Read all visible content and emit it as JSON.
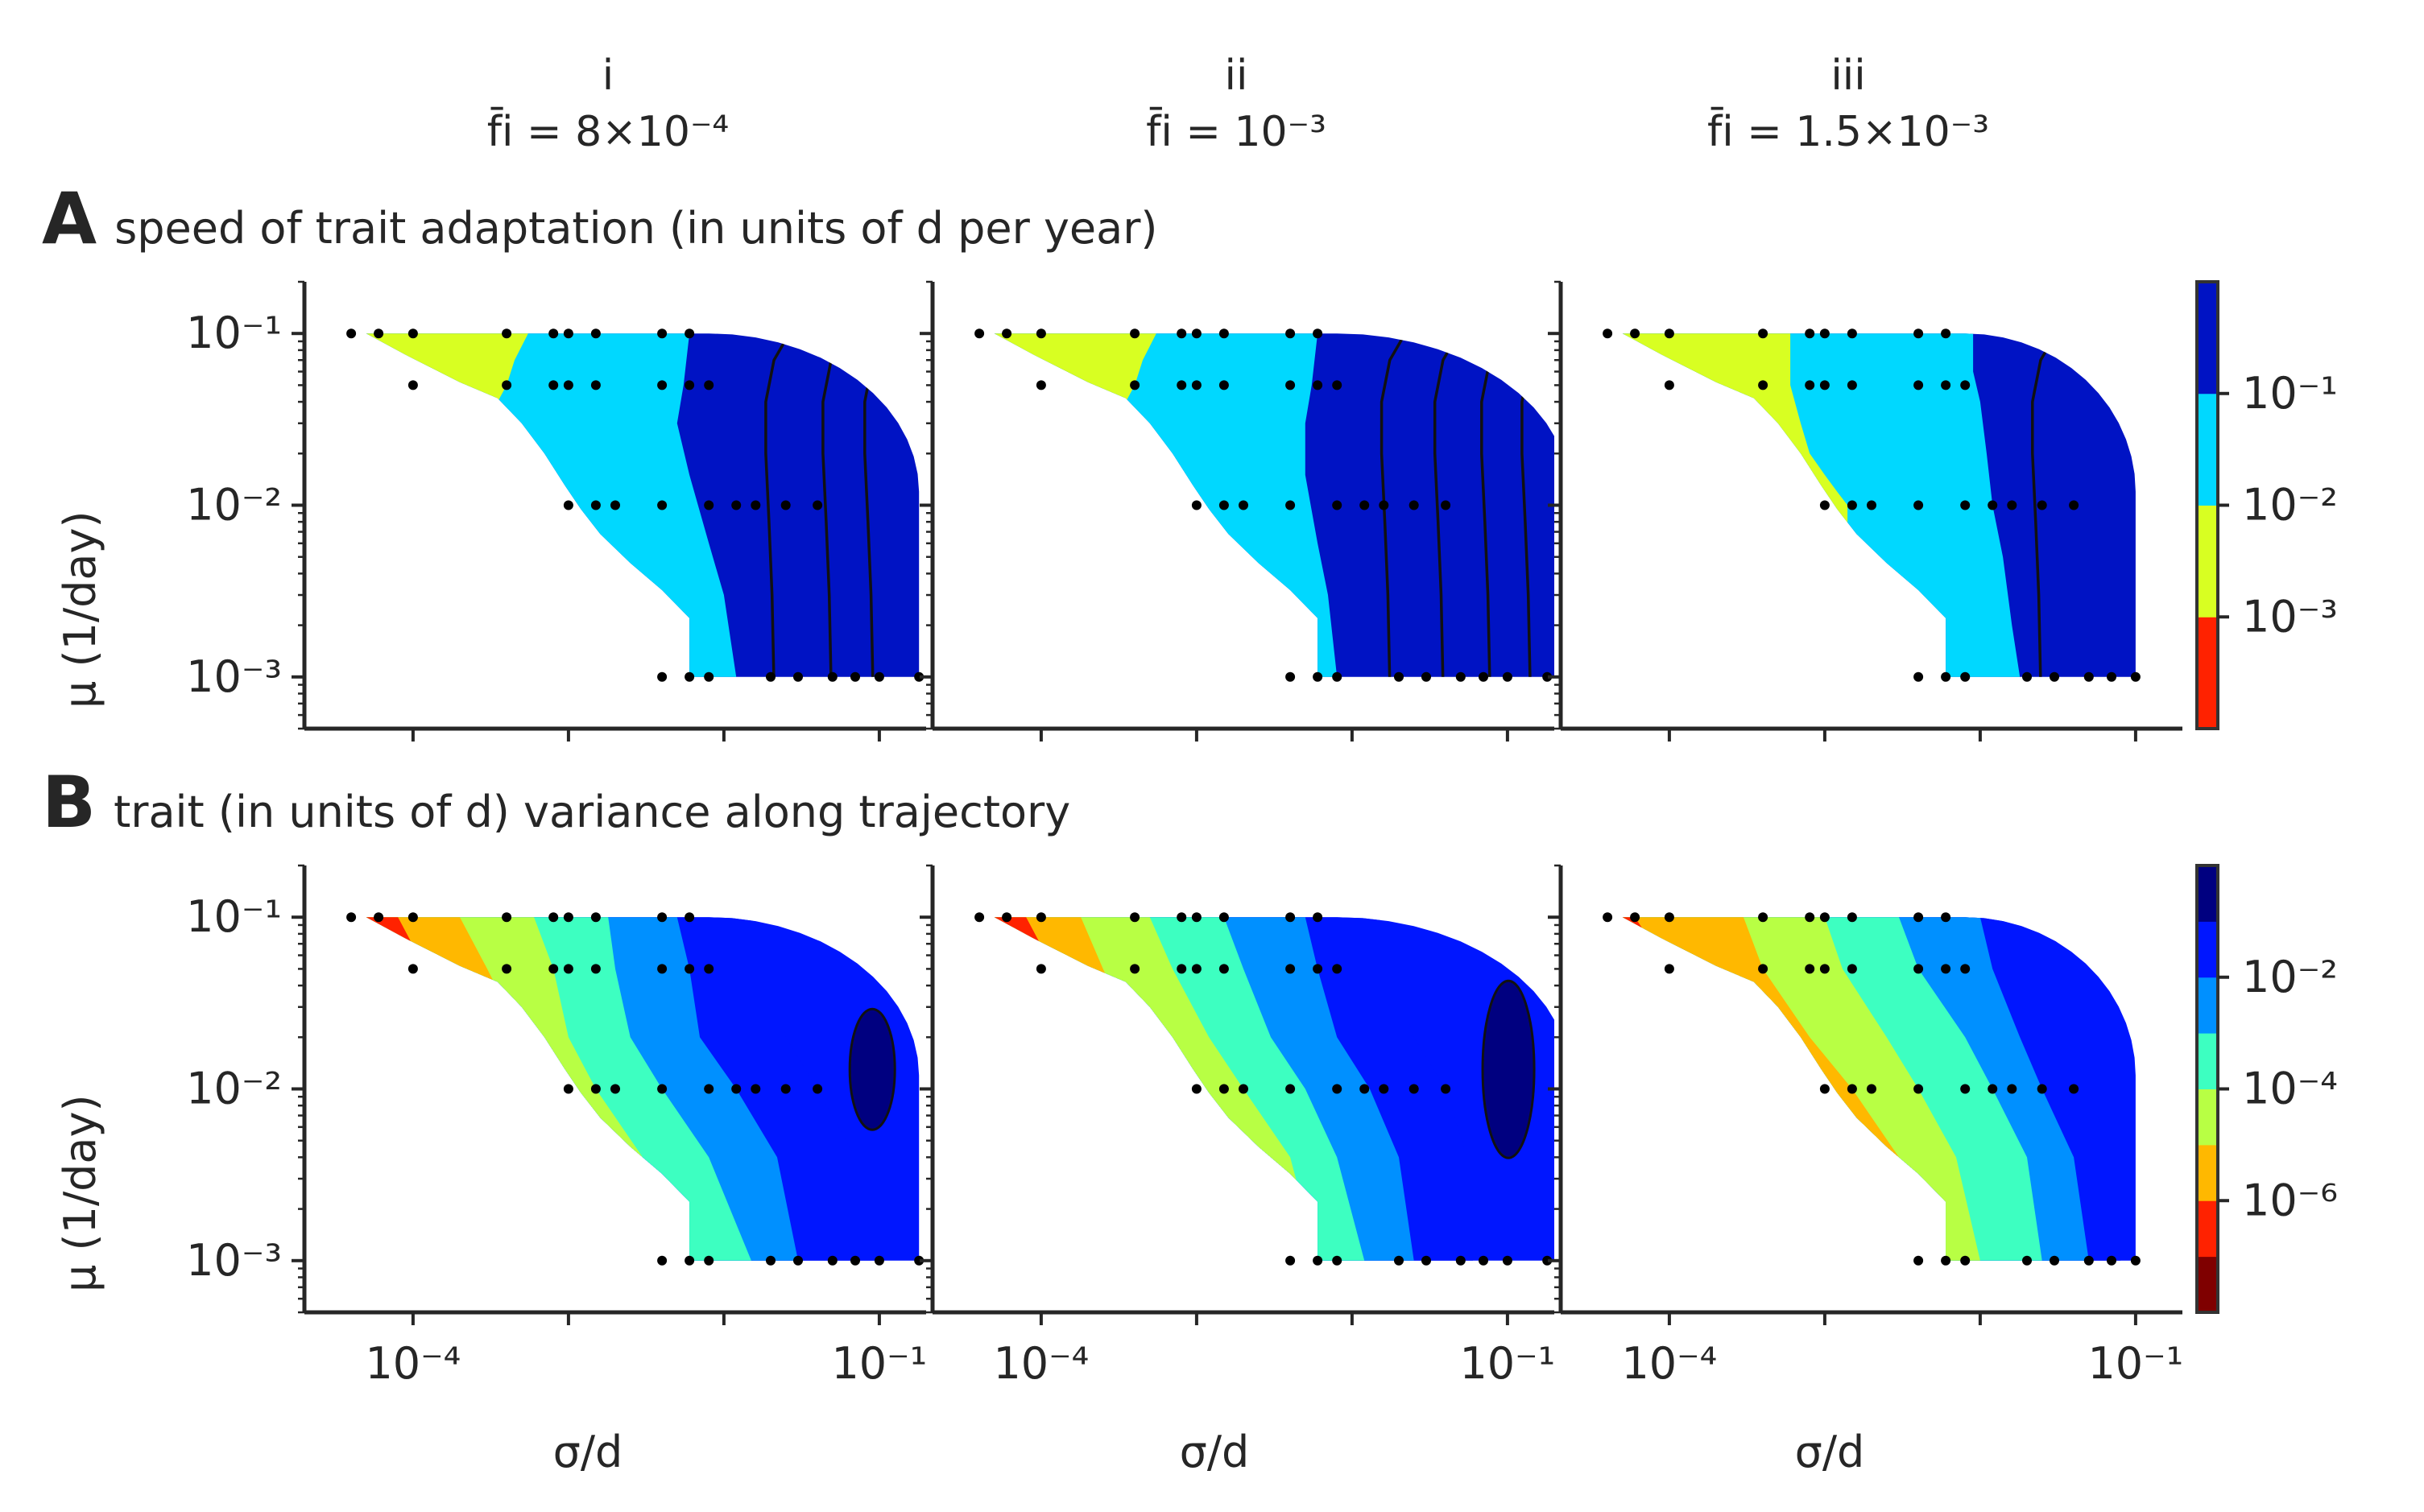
{
  "columns": [
    {
      "label": "i",
      "formula": "f̄i = 8×10⁻⁴"
    },
    {
      "label": "ii",
      "formula": "f̄i = 10⁻³"
    },
    {
      "label": "iii",
      "formula": "f̄i = 1.5×10⁻³"
    }
  ],
  "panels": {
    "A": {
      "letter": "A",
      "title": "speed of trait adaptation (in units of d per year)"
    },
    "B": {
      "letter": "B",
      "title": "trait (in units of d) variance along trajectory"
    }
  },
  "axes": {
    "ylabel": "μ (1/day)",
    "xlabel": "σ/d"
  },
  "chart_data": [
    {
      "type": "heatmap",
      "panel": "A",
      "title": "speed of trait adaptation (in units of d per year)",
      "xlabel": "σ/d",
      "ylabel": "μ (1/day)",
      "xscale": "log",
      "yscale": "log",
      "xlim": [
        2e-05,
        0.2
      ],
      "ylim": [
        0.0005,
        0.2
      ],
      "x_ticks": [
        0.0001,
        0.001,
        0.01,
        0.1,
        1
      ],
      "x_tick_labels": [
        "10⁻⁴",
        "",
        "",
        "10⁻¹",
        ""
      ],
      "y_ticks": [
        0.001,
        0.01,
        0.1
      ],
      "y_tick_labels": [
        "10⁻³",
        "10⁻²",
        "10⁻¹"
      ],
      "colorbar": {
        "levels": [
          "<10⁻³",
          "10⁻³–10⁻²",
          "10⁻²–10⁻¹",
          ">10⁻¹"
        ],
        "colors": [
          "#ff2200",
          "#d8ff22",
          "#00d8ff",
          "#0013c4"
        ],
        "tick_labels": [
          "10⁻¹",
          "10⁻²",
          "10⁻³"
        ]
      },
      "subplots": [
        {
          "label": "i",
          "f_i": 0.0008,
          "upper_boundary": [
            [
              5e-05,
              0.1
            ],
            [
              0.008,
              0.1
            ],
            [
              0.05,
              0.08
            ],
            [
              0.13,
              0.03
            ],
            [
              0.18,
              0.01
            ],
            [
              0.18,
              0.001
            ]
          ],
          "lower_boundary": [
            [
              5e-05,
              0.1
            ],
            [
              0.0002,
              0.05
            ],
            [
              0.001,
              0.01
            ],
            [
              0.003,
              0.004
            ],
            [
              0.006,
              0.002
            ],
            [
              0.006,
              0.001
            ]
          ],
          "level_boundaries": [
            [
              0.0003,
              0.0006
            ],
            [
              0.006,
              0.02
            ]
          ],
          "sample_points_mu": [
            0.1,
            0.05,
            0.01,
            0.001
          ]
        },
        {
          "label": "ii",
          "f_i": 0.001,
          "upper_boundary": [
            [
              5e-05,
              0.1
            ],
            [
              0.008,
              0.1
            ],
            [
              0.06,
              0.08
            ],
            [
              0.18,
              0.03
            ],
            [
              0.25,
              0.01
            ],
            [
              0.25,
              0.001
            ]
          ],
          "lower_boundary": [
            [
              5e-05,
              0.1
            ],
            [
              0.0002,
              0.05
            ],
            [
              0.001,
              0.01
            ],
            [
              0.003,
              0.004
            ],
            [
              0.006,
              0.002
            ],
            [
              0.006,
              0.001
            ]
          ],
          "level_boundaries": [
            [
              0.0003,
              0.0006
            ],
            [
              0.006,
              0.015
            ]
          ],
          "sample_points_mu": [
            0.1,
            0.05,
            0.01,
            0.001
          ]
        },
        {
          "label": "iii",
          "f_i": 0.0015,
          "upper_boundary": [
            [
              5e-05,
              0.1
            ],
            [
              0.008,
              0.1
            ],
            [
              0.05,
              0.08
            ],
            [
              0.1,
              0.03
            ],
            [
              0.1,
              0.001
            ]
          ],
          "lower_boundary": [
            [
              5e-05,
              0.1
            ],
            [
              0.0002,
              0.05
            ],
            [
              0.001,
              0.01
            ],
            [
              0.003,
              0.004
            ],
            [
              0.006,
              0.002
            ],
            [
              0.006,
              0.001
            ]
          ],
          "level_boundaries": [
            [
              0.0005,
              0.002
            ],
            [
              0.01,
              0.03
            ]
          ],
          "sample_points_mu": [
            0.1,
            0.05,
            0.01,
            0.001
          ]
        }
      ]
    },
    {
      "type": "heatmap",
      "panel": "B",
      "title": "trait (in units of d) variance along trajectory",
      "xlabel": "σ/d",
      "ylabel": "μ (1/day)",
      "xscale": "log",
      "yscale": "log",
      "xlim": [
        2e-05,
        0.2
      ],
      "ylim": [
        0.0005,
        0.2
      ],
      "x_ticks": [
        0.0001,
        0.001,
        0.01,
        0.1,
        1
      ],
      "x_tick_labels": [
        "10⁻⁴",
        "",
        "",
        "10⁻¹",
        ""
      ],
      "y_ticks": [
        0.001,
        0.01,
        0.1
      ],
      "y_tick_labels": [
        "10⁻³",
        "10⁻²",
        "10⁻¹"
      ],
      "colorbar": {
        "levels": [
          "<10⁻⁷",
          "10⁻⁷–10⁻⁶",
          "10⁻⁶–10⁻⁵",
          "10⁻⁵–10⁻⁴",
          "10⁻⁴–10⁻³",
          "10⁻³–10⁻²",
          "10⁻²–10⁻¹",
          ">10⁻¹"
        ],
        "colors": [
          "#7f0000",
          "#ff2200",
          "#ffb800",
          "#b8ff44",
          "#3dffc1",
          "#0090ff",
          "#0016ff",
          "#000080"
        ],
        "tick_labels": [
          "10⁻²",
          "10⁻⁴",
          "10⁻⁶"
        ]
      },
      "subplots": [
        {
          "label": "i",
          "f_i": 0.0008,
          "sample_points_mu": [
            0.1,
            0.05,
            0.01,
            0.001
          ]
        },
        {
          "label": "ii",
          "f_i": 0.001,
          "sample_points_mu": [
            0.1,
            0.05,
            0.01,
            0.001
          ]
        },
        {
          "label": "iii",
          "f_i": 0.0015,
          "sample_points_mu": [
            0.1,
            0.05,
            0.01,
            0.001
          ]
        }
      ]
    }
  ]
}
